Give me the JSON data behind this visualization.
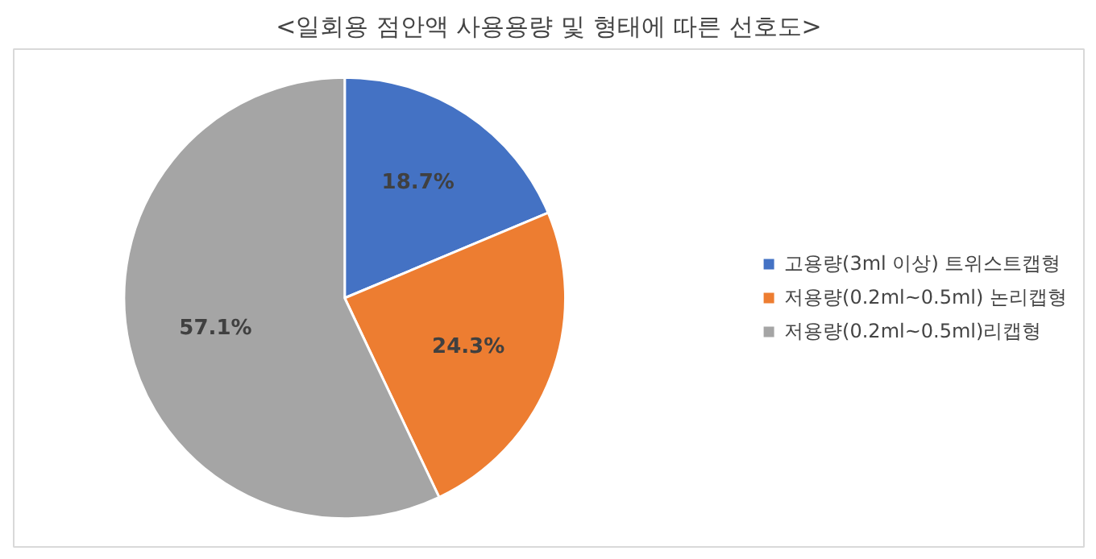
{
  "chart_data": {
    "type": "pie",
    "title": "<일회용 점안액 사용용량 및 형태에 따른 선호도>",
    "categories": [
      "고용량(3ml 이상) 트위스트캡형",
      "저용량(0.2ml~0.5ml) 논리캡형",
      "저용량(0.2ml~0.5ml)리캡형"
    ],
    "values": [
      18.7,
      24.3,
      57.1
    ],
    "colors": [
      "#4472c4",
      "#ed7d31",
      "#a5a5a5"
    ],
    "value_labels": [
      "18.7%",
      "24.3%",
      "57.1%"
    ],
    "legend": "right"
  }
}
